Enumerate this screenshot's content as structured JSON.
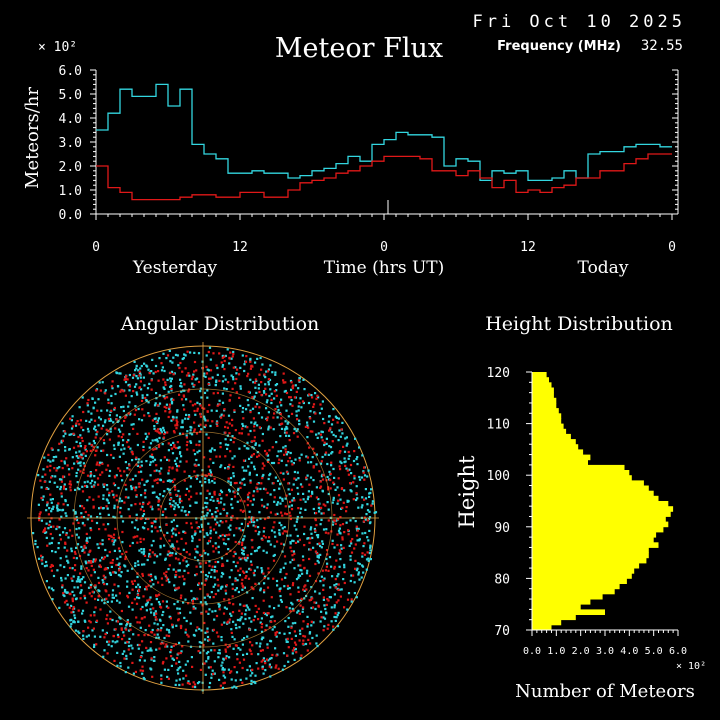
{
  "header": {
    "date": "Fri Oct 10 2025",
    "title": "Meteor Flux",
    "frequency_label": "Frequency (MHz)",
    "frequency_value": "32.55"
  },
  "colors": {
    "background": "#000000",
    "current": "#33d6e0",
    "previous": "#e01818",
    "axis": "#ffffff",
    "histogram": "#ffff00",
    "polar_grid": "#e0a040"
  },
  "chart_data": [
    {
      "type": "line",
      "title": "Meteor Flux",
      "ylabel": "Meteors/hr",
      "y_multiplier": "× 10²",
      "xlabel": "Time (hrs UT)",
      "x_tick_labels": [
        "0",
        "12",
        "0",
        "12",
        "0"
      ],
      "x_day_labels": [
        "Yesterday",
        "Today"
      ],
      "x_range_hours": [
        0,
        48
      ],
      "ylim": [
        0,
        6
      ],
      "y_tick_labels": [
        "0.0",
        "1.0",
        "2.0",
        "3.0",
        "4.0",
        "5.0",
        "6.0"
      ],
      "step": true,
      "series": [
        {
          "color": "#33d6e0",
          "x": [
            0,
            1,
            2,
            3,
            4,
            5,
            6,
            7,
            8,
            9,
            10,
            11,
            12,
            13,
            14,
            15,
            16,
            17,
            18,
            19,
            20,
            21,
            22,
            23,
            24,
            25,
            26,
            27,
            28,
            29,
            30,
            31,
            32,
            33,
            34,
            35,
            36,
            37,
            38,
            39,
            40,
            41,
            42,
            43,
            44,
            45,
            46,
            47
          ],
          "values": [
            3.5,
            4.2,
            5.2,
            4.9,
            4.9,
            5.4,
            4.5,
            5.2,
            2.9,
            2.5,
            2.3,
            1.7,
            1.7,
            1.8,
            1.7,
            1.7,
            1.5,
            1.6,
            1.8,
            1.9,
            2.1,
            2.4,
            2.2,
            2.9,
            3.1,
            3.4,
            3.3,
            3.3,
            3.2,
            2.0,
            2.3,
            2.2,
            1.4,
            1.8,
            1.7,
            1.8,
            1.4,
            1.4,
            1.5,
            1.8,
            1.5,
            2.5,
            2.6,
            2.6,
            2.8,
            2.9,
            2.9,
            2.8
          ]
        },
        {
          "color": "#e01818",
          "x": [
            0,
            1,
            2,
            3,
            4,
            5,
            6,
            7,
            8,
            9,
            10,
            11,
            12,
            13,
            14,
            15,
            16,
            17,
            18,
            19,
            20,
            21,
            22,
            23,
            24,
            25,
            26,
            27,
            28,
            29,
            30,
            31,
            32,
            33,
            34,
            35,
            36,
            37,
            38,
            39,
            40,
            41,
            42,
            43,
            44,
            45,
            46,
            47
          ],
          "values": [
            2.0,
            1.1,
            0.9,
            0.6,
            0.6,
            0.6,
            0.6,
            0.7,
            0.8,
            0.8,
            0.7,
            0.7,
            0.9,
            0.9,
            0.7,
            0.7,
            1.0,
            1.3,
            1.4,
            1.5,
            1.7,
            1.8,
            2.0,
            2.2,
            2.4,
            2.4,
            2.4,
            2.3,
            1.8,
            1.8,
            1.6,
            1.8,
            1.5,
            1.1,
            1.4,
            0.9,
            1.0,
            0.9,
            1.1,
            1.2,
            1.5,
            1.5,
            1.8,
            1.8,
            2.1,
            2.3,
            2.5,
            2.5
          ]
        }
      ]
    },
    {
      "type": "scatter",
      "title": "Angular Distribution",
      "projection": "polar",
      "series": [
        {
          "color": "#33d6e0",
          "description_count": 2200
        },
        {
          "color": "#e01818",
          "description_count": 1400
        }
      ]
    },
    {
      "type": "bar",
      "orientation": "horizontal",
      "title": "Height Distribution",
      "ylabel": "Height",
      "xlabel": "Number of Meteors",
      "x_multiplier": "× 10²",
      "x_tick_labels": [
        "0.0",
        "1.0",
        "2.0",
        "3.0",
        "4.0",
        "5.0",
        "6.0"
      ],
      "xlim": [
        0,
        6
      ],
      "y_tick_labels": [
        "70",
        "80",
        "90",
        "100",
        "110",
        "120"
      ],
      "ylim": [
        70,
        120
      ],
      "color": "#ffff00",
      "heights_km": [
        70,
        71,
        72,
        73,
        74,
        75,
        76,
        77,
        78,
        79,
        80,
        81,
        82,
        83,
        84,
        85,
        86,
        87,
        88,
        89,
        90,
        91,
        92,
        93,
        94,
        95,
        96,
        97,
        98,
        99,
        100,
        101,
        102,
        103,
        104,
        105,
        106,
        107,
        108,
        109,
        110,
        111,
        112,
        113,
        114,
        115,
        116,
        117,
        118,
        119
      ],
      "values": [
        0.8,
        1.2,
        1.8,
        3.0,
        2.0,
        2.4,
        2.9,
        3.4,
        3.6,
        3.9,
        4.1,
        4.2,
        4.4,
        4.7,
        4.8,
        4.8,
        5.2,
        5.0,
        5.1,
        5.4,
        5.6,
        5.5,
        5.7,
        5.8,
        5.6,
        5.2,
        5.0,
        4.8,
        4.6,
        4.1,
        4.0,
        3.8,
        2.3,
        2.4,
        2.1,
        1.9,
        1.8,
        1.6,
        1.4,
        1.3,
        1.2,
        1.2,
        1.1,
        1.0,
        1.0,
        0.9,
        0.9,
        0.8,
        0.7,
        0.6
      ]
    }
  ]
}
